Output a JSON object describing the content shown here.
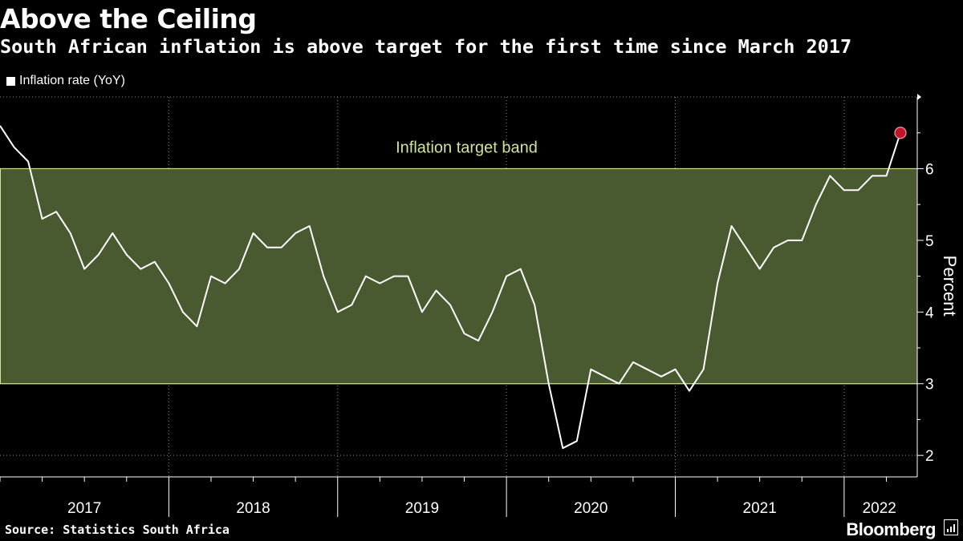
{
  "header": {
    "title": "Above the Ceiling",
    "subtitle": "South African inflation is above target for the first time since March 2017"
  },
  "legend": {
    "label": "Inflation rate (YoY)"
  },
  "footer": {
    "source": "Source: Statistics South Africa",
    "brand": "Bloomberg"
  },
  "colors": {
    "background": "#000000",
    "band_fill": "#4a5a30",
    "band_edge": "#cfe59a",
    "line": "#ffffff",
    "marker": "#c0142b"
  },
  "chart_data": {
    "type": "line",
    "title": "Above the Ceiling",
    "subtitle": "South African inflation is above target for the first time since March 2017",
    "ylabel": "Percent",
    "xlabel": "",
    "ylim": [
      1.7,
      7
    ],
    "yticks": [
      2,
      3,
      4,
      5,
      6
    ],
    "xlim": [
      "2017-01",
      "2022-05"
    ],
    "x_tick_labels": [
      "2017",
      "2018",
      "2019",
      "2020",
      "2021",
      "2022"
    ],
    "grid": true,
    "legend_placement": "top-left",
    "band": {
      "label": "Inflation target band",
      "low": 3,
      "high": 6
    },
    "series": [
      {
        "name": "Inflation rate (YoY)",
        "x": [
          "2017-01",
          "2017-02",
          "2017-03",
          "2017-04",
          "2017-05",
          "2017-06",
          "2017-07",
          "2017-08",
          "2017-09",
          "2017-10",
          "2017-11",
          "2017-12",
          "2018-01",
          "2018-02",
          "2018-03",
          "2018-04",
          "2018-05",
          "2018-06",
          "2018-07",
          "2018-08",
          "2018-09",
          "2018-10",
          "2018-11",
          "2018-12",
          "2019-01",
          "2019-02",
          "2019-03",
          "2019-04",
          "2019-05",
          "2019-06",
          "2019-07",
          "2019-08",
          "2019-09",
          "2019-10",
          "2019-11",
          "2019-12",
          "2020-01",
          "2020-02",
          "2020-03",
          "2020-04",
          "2020-05",
          "2020-06",
          "2020-07",
          "2020-08",
          "2020-09",
          "2020-10",
          "2020-11",
          "2020-12",
          "2021-01",
          "2021-02",
          "2021-03",
          "2021-04",
          "2021-05",
          "2021-06",
          "2021-07",
          "2021-08",
          "2021-09",
          "2021-10",
          "2021-11",
          "2021-12",
          "2022-01",
          "2022-02",
          "2022-03",
          "2022-04",
          "2022-05"
        ],
        "values": [
          6.6,
          6.3,
          6.1,
          5.3,
          5.4,
          5.1,
          4.6,
          4.8,
          5.1,
          4.8,
          4.6,
          4.7,
          4.4,
          4.0,
          3.8,
          4.5,
          4.4,
          4.6,
          5.1,
          4.9,
          4.9,
          5.1,
          5.2,
          4.5,
          4.0,
          4.1,
          4.5,
          4.4,
          4.5,
          4.5,
          4.0,
          4.3,
          4.1,
          3.7,
          3.6,
          4.0,
          4.5,
          4.6,
          4.1,
          3.0,
          2.1,
          2.2,
          3.2,
          3.1,
          3.0,
          3.3,
          3.2,
          3.1,
          3.2,
          2.9,
          3.2,
          4.4,
          5.2,
          4.9,
          4.6,
          4.9,
          5.0,
          5.0,
          5.5,
          5.9,
          5.7,
          5.7,
          5.9,
          5.9,
          6.5
        ],
        "highlight_last": true
      }
    ]
  }
}
